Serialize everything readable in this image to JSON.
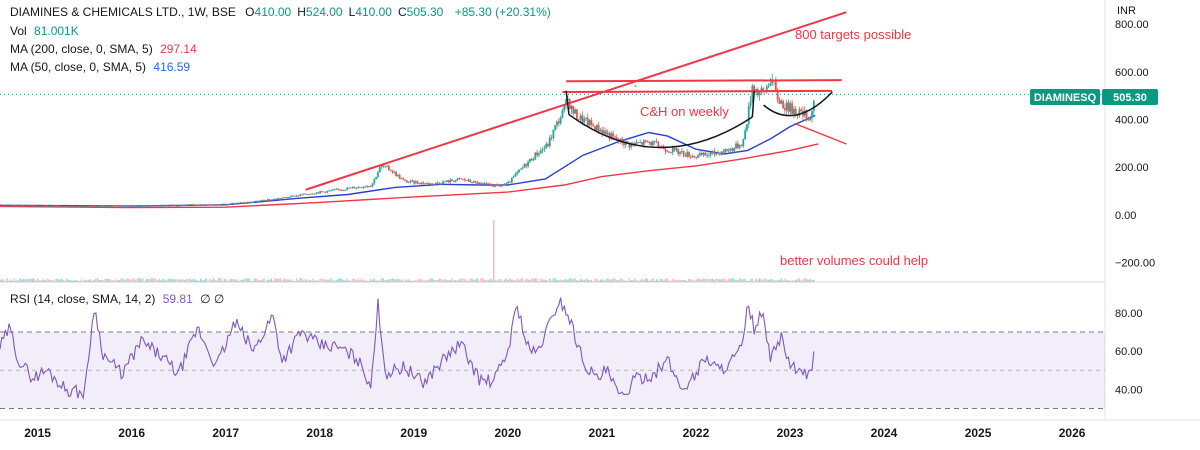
{
  "legend": {
    "title": "DIAMINES & CHEMICALS LTD., 1W, BSE",
    "ohlc": [
      {
        "label": "O",
        "value": "410.00"
      },
      {
        "label": "H",
        "value": "524.00"
      },
      {
        "label": "L",
        "value": "410.00"
      },
      {
        "label": "C",
        "value": "505.30"
      }
    ],
    "change": "+85.30 (+20.31%)",
    "vol_label": "Vol",
    "vol_value": "81.001K",
    "ma200_label": "MA (200, close, 0, SMA, 5)",
    "ma200_value": "297.14",
    "ma50_label": "MA (50, close, 0, SMA, 5)",
    "ma50_value": "416.59",
    "rsi_label": "RSI (14, close, SMA, 14, 2)",
    "rsi_value": "59.81",
    "rsi_extra": "∅ ∅"
  },
  "price_badge": {
    "symbol": "DIAMINESQ",
    "price": "505.30"
  },
  "annotations": {
    "target": "800 targets possible",
    "pattern": "C&H on weekly",
    "volume_note": "better volumes could help",
    "tick_mark": "`"
  },
  "colors": {
    "candle_up": "#26a69a",
    "candle_down": "#ef5350",
    "ma200": "#f23645",
    "ma50": "#2a3fd6",
    "rsi": "#7e57c2",
    "rsi_band": "rgba(126,87,194,0.10)",
    "drawing_red": "#f23645",
    "drawing_black": "#131722",
    "badge_bg": "#089981",
    "legend_value_red": "#f23645",
    "legend_value_green": "#089981",
    "legend_value_blue": "#2962ff"
  },
  "chart_data": [
    {
      "type": "candlestick",
      "title": "DIAMINES & CHEMICALS LTD., 1W, BSE",
      "y_axis_unit": "INR",
      "y_ticks": [
        "800.00",
        "600.00",
        "400.00",
        "200.00",
        "0.00",
        "−200.00"
      ],
      "ylim": [
        -240,
        880
      ],
      "x_ticks": [
        "2015",
        "2016",
        "2017",
        "2018",
        "2019",
        "2020",
        "2021",
        "2022",
        "2023",
        "2024",
        "2025",
        "2026"
      ],
      "xlim": [
        2014.6,
        2026.35
      ],
      "price_path": [
        [
          2014.6,
          40
        ],
        [
          2015.0,
          38
        ],
        [
          2015.5,
          36
        ],
        [
          2016.0,
          38
        ],
        [
          2016.5,
          40
        ],
        [
          2017.0,
          45
        ],
        [
          2017.3,
          55
        ],
        [
          2017.6,
          70
        ],
        [
          2017.9,
          90
        ],
        [
          2018.2,
          105
        ],
        [
          2018.55,
          125
        ],
        [
          2018.65,
          205
        ],
        [
          2018.75,
          190
        ],
        [
          2018.9,
          140
        ],
        [
          2019.2,
          130
        ],
        [
          2019.5,
          150
        ],
        [
          2019.7,
          130
        ],
        [
          2019.9,
          120
        ],
        [
          2020.0,
          130
        ],
        [
          2020.1,
          175
        ],
        [
          2020.2,
          215
        ],
        [
          2020.3,
          255
        ],
        [
          2020.42,
          290
        ],
        [
          2020.5,
          365
        ],
        [
          2020.58,
          425
        ],
        [
          2020.64,
          485
        ],
        [
          2020.68,
          440
        ],
        [
          2020.75,
          410
        ],
        [
          2020.9,
          375
        ],
        [
          2021.0,
          355
        ],
        [
          2021.15,
          315
        ],
        [
          2021.3,
          295
        ],
        [
          2021.5,
          305
        ],
        [
          2021.7,
          275
        ],
        [
          2021.9,
          255
        ],
        [
          2022.0,
          245
        ],
        [
          2022.2,
          258
        ],
        [
          2022.4,
          280
        ],
        [
          2022.5,
          305
        ],
        [
          2022.55,
          410
        ],
        [
          2022.6,
          545
        ],
        [
          2022.66,
          515
        ],
        [
          2022.72,
          510
        ],
        [
          2022.8,
          580
        ],
        [
          2022.86,
          495
        ],
        [
          2022.95,
          455
        ],
        [
          2023.05,
          440
        ],
        [
          2023.15,
          420
        ],
        [
          2023.22,
          410
        ],
        [
          2023.27,
          505.3
        ]
      ],
      "ma50_path": [
        [
          2014.6,
          40
        ],
        [
          2016.0,
          37
        ],
        [
          2017.0,
          42
        ],
        [
          2017.8,
          70
        ],
        [
          2018.3,
          85
        ],
        [
          2018.8,
          115
        ],
        [
          2019.3,
          128
        ],
        [
          2019.7,
          125
        ],
        [
          2020.0,
          125
        ],
        [
          2020.4,
          150
        ],
        [
          2020.8,
          250
        ],
        [
          2021.2,
          310
        ],
        [
          2021.5,
          345
        ],
        [
          2021.7,
          330
        ],
        [
          2022.0,
          275
        ],
        [
          2022.3,
          255
        ],
        [
          2022.55,
          270
        ],
        [
          2022.8,
          320
        ],
        [
          2023.0,
          370
        ],
        [
          2023.27,
          416.59
        ]
      ],
      "ma200_path": [
        [
          2014.6,
          35
        ],
        [
          2016.0,
          30
        ],
        [
          2017.0,
          32
        ],
        [
          2018.0,
          52
        ],
        [
          2019.0,
          75
        ],
        [
          2020.0,
          95
        ],
        [
          2020.6,
          125
        ],
        [
          2021.0,
          160
        ],
        [
          2021.5,
          185
        ],
        [
          2022.0,
          205
        ],
        [
          2022.5,
          235
        ],
        [
          2023.0,
          270
        ],
        [
          2023.3,
          297.14
        ]
      ],
      "ma200_value": 297.14,
      "ma50_value": 416.59,
      "last_close": 505.3,
      "volume_spike_year": 2019.85
    },
    {
      "type": "line",
      "title": "RSI (14, close, SMA, 14, 2)",
      "y_ticks": [
        "80.00",
        "60.00",
        "40.00"
      ],
      "ylim": [
        25,
        92
      ],
      "band": [
        30,
        70
      ],
      "midline": 50,
      "last_value": 59.81,
      "rsi_path": [
        [
          2014.6,
          62
        ],
        [
          2014.7,
          72
        ],
        [
          2014.8,
          55
        ],
        [
          2014.95,
          46
        ],
        [
          2015.1,
          50
        ],
        [
          2015.3,
          40
        ],
        [
          2015.5,
          38
        ],
        [
          2015.6,
          83
        ],
        [
          2015.7,
          58
        ],
        [
          2015.9,
          48
        ],
        [
          2016.1,
          65
        ],
        [
          2016.3,
          58
        ],
        [
          2016.5,
          48
        ],
        [
          2016.7,
          72
        ],
        [
          2016.9,
          52
        ],
        [
          2017.1,
          75
        ],
        [
          2017.3,
          60
        ],
        [
          2017.5,
          79
        ],
        [
          2017.6,
          55
        ],
        [
          2017.8,
          70
        ],
        [
          2018.0,
          63
        ],
        [
          2018.2,
          62
        ],
        [
          2018.4,
          56
        ],
        [
          2018.55,
          42
        ],
        [
          2018.62,
          85
        ],
        [
          2018.7,
          48
        ],
        [
          2018.9,
          52
        ],
        [
          2019.1,
          43
        ],
        [
          2019.3,
          55
        ],
        [
          2019.5,
          64
        ],
        [
          2019.7,
          45
        ],
        [
          2019.85,
          44
        ],
        [
          2020.0,
          60
        ],
        [
          2020.1,
          85
        ],
        [
          2020.2,
          63
        ],
        [
          2020.3,
          58
        ],
        [
          2020.45,
          75
        ],
        [
          2020.55,
          87
        ],
        [
          2020.65,
          78
        ],
        [
          2020.8,
          55
        ],
        [
          2020.95,
          45
        ],
        [
          2021.05,
          50
        ],
        [
          2021.2,
          35
        ],
        [
          2021.35,
          45
        ],
        [
          2021.55,
          48
        ],
        [
          2021.7,
          55
        ],
        [
          2021.85,
          40
        ],
        [
          2022.0,
          48
        ],
        [
          2022.1,
          57
        ],
        [
          2022.25,
          50
        ],
        [
          2022.4,
          56
        ],
        [
          2022.5,
          63
        ],
        [
          2022.55,
          83
        ],
        [
          2022.62,
          72
        ],
        [
          2022.7,
          80
        ],
        [
          2022.8,
          55
        ],
        [
          2022.9,
          68
        ],
        [
          2023.0,
          53
        ],
        [
          2023.1,
          48
        ],
        [
          2023.2,
          47
        ],
        [
          2023.27,
          59.81
        ]
      ]
    }
  ]
}
